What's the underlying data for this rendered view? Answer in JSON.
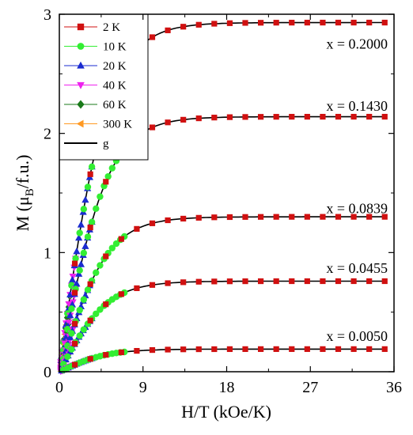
{
  "chart_data": {
    "type": "scatter",
    "xlabel": "H/T  (kOe/K)",
    "ylabel": {
      "pre": "M  (μ",
      "sub": "B",
      "post": "/f.u.)"
    },
    "xlim": [
      0,
      36
    ],
    "ylim": [
      0,
      3
    ],
    "xticks": [
      "0",
      "9",
      "18",
      "27",
      "36"
    ],
    "xtick_values": [
      0,
      9,
      18,
      27,
      36
    ],
    "yticks": [
      "0",
      "1",
      "2",
      "3"
    ],
    "ytick_values": [
      0,
      1,
      2,
      3
    ],
    "grid": false,
    "legend_position": "top-left",
    "legend": [
      {
        "label": "2 K",
        "color": "#d01010",
        "marker": "square"
      },
      {
        "label": "10 K",
        "color": "#33ee33",
        "marker": "circle"
      },
      {
        "label": "20 K",
        "color": "#1a2bd0",
        "marker": "triangle-up"
      },
      {
        "label": "40 K",
        "color": "#ee22ee",
        "marker": "triangle-down"
      },
      {
        "label": "60 K",
        "color": "#1a7a1a",
        "marker": "diamond"
      },
      {
        "label": "300 K",
        "color": "#ff9922",
        "marker": "triangle-left"
      },
      {
        "label": "g",
        "color": "#000000",
        "marker": "line"
      }
    ],
    "annotations": [
      {
        "text": "x = 0.2000",
        "y": 2.75
      },
      {
        "text": "x = 0.1430",
        "y": 2.23
      },
      {
        "text": "x = 0.0839",
        "y": 1.37
      },
      {
        "text": "x = 0.0455",
        "y": 0.87
      },
      {
        "text": "x = 0.0050",
        "y": 0.3
      }
    ],
    "series": [
      {
        "label": "x = 0.2000",
        "saturation": 2.93,
        "scale": 5.2,
        "xmax_2K": 35,
        "xmax_10K": 7,
        "xmax_20K": 3.5,
        "xmax_40K": 1.75
      },
      {
        "label": "x = 0.1430",
        "saturation": 2.14,
        "scale": 5.2,
        "xmax_2K": 35,
        "xmax_10K": 7,
        "xmax_20K": 3.5,
        "xmax_40K": 1.75
      },
      {
        "label": "x = 0.0839",
        "saturation": 1.3,
        "scale": 5.2,
        "xmax_2K": 35,
        "xmax_10K": 7,
        "xmax_20K": 3.5,
        "xmax_40K": 1.75
      },
      {
        "label": "x = 0.0455",
        "saturation": 0.76,
        "scale": 5.2,
        "xmax_2K": 35,
        "xmax_10K": 7,
        "xmax_20K": 3.5,
        "xmax_40K": 1.75
      },
      {
        "label": "x = 0.0050",
        "saturation": 0.19,
        "scale": 5.2,
        "xmax_2K": 35,
        "xmax_10K": 7,
        "xmax_20K": 3.5,
        "xmax_40K": 1.75
      }
    ]
  }
}
